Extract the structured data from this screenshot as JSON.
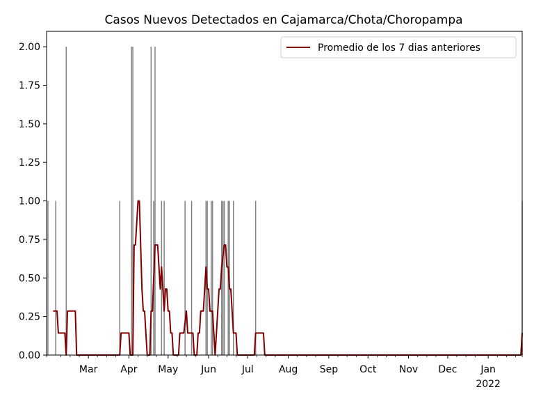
{
  "chart_data": {
    "type": "bar",
    "title": "Casos Nuevos Detectados en Cajamarca/Chota/Choropampa",
    "xlabel": "",
    "ylabel": "",
    "x_range": [
      "2021-01-28",
      "2022-01-27"
    ],
    "ylim": [
      0,
      2.1
    ],
    "y_ticks": [
      {
        "value": 0.0,
        "label": "0.00"
      },
      {
        "value": 0.25,
        "label": "0.25"
      },
      {
        "value": 0.5,
        "label": "0.50"
      },
      {
        "value": 0.75,
        "label": "0.75"
      },
      {
        "value": 1.0,
        "label": "1.00"
      },
      {
        "value": 1.25,
        "label": "1.25"
      },
      {
        "value": 1.5,
        "label": "1.50"
      },
      {
        "value": 1.75,
        "label": "1.75"
      },
      {
        "value": 2.0,
        "label": "2.00"
      }
    ],
    "x_ticks": [
      {
        "date": "2021-03-01",
        "label": "Mar"
      },
      {
        "date": "2021-04-01",
        "label": "Apr"
      },
      {
        "date": "2021-05-01",
        "label": "May"
      },
      {
        "date": "2021-06-01",
        "label": "Jun"
      },
      {
        "date": "2021-07-01",
        "label": "Jul"
      },
      {
        "date": "2021-08-01",
        "label": "Aug"
      },
      {
        "date": "2021-09-01",
        "label": "Sep"
      },
      {
        "date": "2021-10-01",
        "label": "Oct"
      },
      {
        "date": "2021-11-01",
        "label": "Nov"
      },
      {
        "date": "2021-12-01",
        "label": "Dec"
      },
      {
        "date": "2022-01-01",
        "label": "Jan",
        "sublabel": "2022"
      }
    ],
    "grid": false,
    "legend_position": "top-right",
    "colors": {
      "bars": "#808080",
      "line": "#800000"
    },
    "bars_series": {
      "name": "",
      "points": [
        [
          "2021-01-29",
          1
        ],
        [
          "2021-02-04",
          1
        ],
        [
          "2021-02-12",
          2
        ],
        [
          "2021-03-25",
          1
        ],
        [
          "2021-04-03",
          2
        ],
        [
          "2021-04-04",
          2
        ],
        [
          "2021-04-18",
          2
        ],
        [
          "2021-04-20",
          1
        ],
        [
          "2021-04-21",
          2
        ],
        [
          "2021-04-26",
          1
        ],
        [
          "2021-04-28",
          1
        ],
        [
          "2021-05-14",
          1
        ],
        [
          "2021-05-19",
          1
        ],
        [
          "2021-05-30",
          1
        ],
        [
          "2021-05-31",
          1
        ],
        [
          "2021-06-03",
          1
        ],
        [
          "2021-06-04",
          1
        ],
        [
          "2021-06-11",
          1
        ],
        [
          "2021-06-12",
          1
        ],
        [
          "2021-06-13",
          1
        ],
        [
          "2021-06-16",
          1
        ],
        [
          "2021-06-17",
          1
        ],
        [
          "2021-06-20",
          1
        ],
        [
          "2021-07-07",
          1
        ],
        [
          "2022-01-27",
          1
        ]
      ]
    },
    "line_series": {
      "name": "Promedio de los 7 dias anteriores",
      "points": [
        [
          "2021-02-02",
          0.2857
        ],
        [
          "2021-02-05",
          0.2857
        ],
        [
          "2021-02-06",
          0.1429
        ],
        [
          "2021-02-11",
          0.1429
        ],
        [
          "2021-02-12",
          0.0
        ],
        [
          "2021-02-13",
          0.2857
        ],
        [
          "2021-02-19",
          0.2857
        ],
        [
          "2021-02-20",
          0.0
        ],
        [
          "2021-03-25",
          0.0
        ],
        [
          "2021-03-26",
          0.1429
        ],
        [
          "2021-04-01",
          0.1429
        ],
        [
          "2021-04-02",
          0.0
        ],
        [
          "2021-04-04",
          0.0
        ],
        [
          "2021-04-05",
          0.7143
        ],
        [
          "2021-04-06",
          0.7143
        ],
        [
          "2021-04-08",
          1.0
        ],
        [
          "2021-04-09",
          1.0
        ],
        [
          "2021-04-11",
          0.4286
        ],
        [
          "2021-04-12",
          0.2857
        ],
        [
          "2021-04-13",
          0.2857
        ],
        [
          "2021-04-15",
          0.0
        ],
        [
          "2021-04-17",
          0.0
        ],
        [
          "2021-04-18",
          0.2857
        ],
        [
          "2021-04-19",
          0.2857
        ],
        [
          "2021-04-21",
          0.7143
        ],
        [
          "2021-04-23",
          0.7143
        ],
        [
          "2021-04-25",
          0.4286
        ],
        [
          "2021-04-26",
          0.5714
        ],
        [
          "2021-04-27",
          0.4286
        ],
        [
          "2021-04-28",
          0.2857
        ],
        [
          "2021-04-29",
          0.4286
        ],
        [
          "2021-04-30",
          0.4286
        ],
        [
          "2021-05-01",
          0.2857
        ],
        [
          "2021-05-02",
          0.2857
        ],
        [
          "2021-05-03",
          0.1429
        ],
        [
          "2021-05-04",
          0.1429
        ],
        [
          "2021-05-05",
          0.0
        ],
        [
          "2021-05-09",
          0.0
        ],
        [
          "2021-05-10",
          0.1429
        ],
        [
          "2021-05-13",
          0.1429
        ],
        [
          "2021-05-15",
          0.2857
        ],
        [
          "2021-05-16",
          0.1429
        ],
        [
          "2021-05-20",
          0.1429
        ],
        [
          "2021-05-21",
          0.0
        ],
        [
          "2021-05-23",
          0.0
        ],
        [
          "2021-05-24",
          0.1429
        ],
        [
          "2021-05-25",
          0.1429
        ],
        [
          "2021-05-26",
          0.2857
        ],
        [
          "2021-05-28",
          0.2857
        ],
        [
          "2021-05-29",
          0.4286
        ],
        [
          "2021-05-30",
          0.5714
        ],
        [
          "2021-05-31",
          0.4286
        ],
        [
          "2021-06-01",
          0.4286
        ],
        [
          "2021-06-02",
          0.2857
        ],
        [
          "2021-06-04",
          0.2857
        ],
        [
          "2021-06-05",
          0.1429
        ],
        [
          "2021-06-06",
          0.0
        ],
        [
          "2021-06-08",
          0.2857
        ],
        [
          "2021-06-09",
          0.4286
        ],
        [
          "2021-06-10",
          0.4286
        ],
        [
          "2021-06-11",
          0.5714
        ],
        [
          "2021-06-13",
          0.7143
        ],
        [
          "2021-06-14",
          0.7143
        ],
        [
          "2021-06-15",
          0.5714
        ],
        [
          "2021-06-16",
          0.5714
        ],
        [
          "2021-06-17",
          0.4286
        ],
        [
          "2021-06-18",
          0.4286
        ],
        [
          "2021-06-20",
          0.1429
        ],
        [
          "2021-06-22",
          0.1429
        ],
        [
          "2021-06-23",
          0.0
        ],
        [
          "2021-07-06",
          0.0
        ],
        [
          "2021-07-07",
          0.1429
        ],
        [
          "2021-07-13",
          0.1429
        ],
        [
          "2021-07-14",
          0.0
        ],
        [
          "2022-01-26",
          0.0
        ],
        [
          "2022-01-27",
          0.1429
        ]
      ]
    }
  }
}
